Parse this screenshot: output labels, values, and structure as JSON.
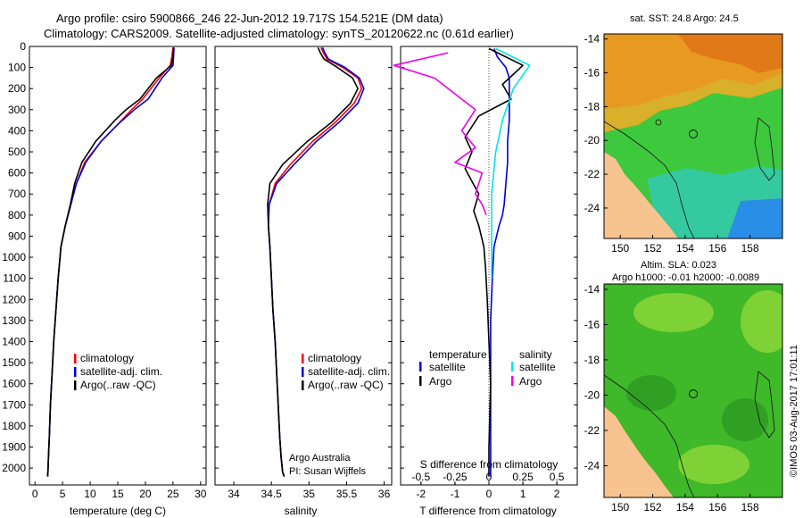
{
  "header": {
    "title_line1": "Argo profile: csiro 5900866_246 22-Jun-2012 19.717S 154.521E (DM data)",
    "title_line2": "Climatology: CARS2009. Satellite-adjusted climatology: synTS_20120622.nc (0.61d earlier)"
  },
  "colors": {
    "climatology": "#ff0000",
    "satellite": "#0000dd",
    "argo": "#000000",
    "salinity_satellite": "#00e5e5",
    "salinity_argo": "#ee00ee",
    "land": "#f7c38f",
    "map_bg": "#22bb22"
  },
  "chart_data": [
    {
      "type": "line",
      "name": "temperature-profile",
      "xlabel": "temperature (deg C)",
      "ylabel": "",
      "xlim": [
        -1,
        31
      ],
      "ylim": [
        2080,
        0
      ],
      "xticks": [
        0,
        5,
        10,
        15,
        20,
        25,
        30
      ],
      "xtick_labels": [
        "0",
        "5",
        "10",
        "15",
        "20",
        "25",
        "30"
      ],
      "yticks": [
        0,
        100,
        200,
        300,
        400,
        500,
        600,
        700,
        800,
        900,
        1000,
        1100,
        1200,
        1300,
        1400,
        1500,
        1600,
        1700,
        1800,
        1900,
        2000
      ],
      "ytick_labels": [
        "0",
        "100",
        "200",
        "300",
        "400",
        "500",
        "600",
        "700",
        "800",
        "900",
        "1000",
        "1100",
        "1200",
        "1300",
        "1400",
        "1500",
        "1600",
        "1700",
        "1800",
        "1900",
        "2000"
      ],
      "legend": [
        "climatology",
        "satellite-adj. clim.",
        "Argo(..raw -QC)"
      ],
      "series": [
        {
          "name": "climatology",
          "color": "#ff0000",
          "x": [
            25.0,
            24.8,
            24.5,
            22.5,
            19.5,
            17.5,
            15.0,
            12.0,
            9.0,
            7.5,
            6.5,
            5.5,
            4.7,
            4.2,
            3.8,
            3.4,
            3.1,
            2.8,
            2.6,
            2.45,
            2.35,
            2.3
          ],
          "y": [
            5,
            50,
            90,
            150,
            250,
            300,
            370,
            450,
            550,
            650,
            750,
            850,
            950,
            1100,
            1250,
            1400,
            1550,
            1700,
            1850,
            1950,
            2020,
            2040
          ]
        },
        {
          "name": "satellite-adj. clim.",
          "color": "#0000dd",
          "x": [
            25.2,
            25.1,
            25.0,
            23.0,
            20.5,
            18.0,
            15.0,
            12.0,
            9.2,
            7.5,
            6.5,
            5.5,
            4.7,
            4.2,
            3.8,
            3.4,
            3.1,
            2.8,
            2.6,
            2.45,
            2.35,
            2.3
          ],
          "y": [
            5,
            50,
            90,
            150,
            250,
            300,
            370,
            450,
            550,
            650,
            750,
            850,
            950,
            1100,
            1250,
            1400,
            1550,
            1700,
            1850,
            1950,
            2020,
            2040
          ]
        },
        {
          "name": "Argo(..raw -QC)",
          "color": "#000000",
          "x": [
            25.1,
            25.0,
            24.7,
            22.0,
            19.0,
            16.5,
            14.5,
            11.0,
            8.5,
            7.2,
            6.4,
            5.5,
            4.7,
            4.2,
            3.8,
            3.4,
            3.1,
            2.8,
            2.6,
            2.45,
            2.35,
            2.3
          ],
          "y": [
            5,
            50,
            90,
            150,
            250,
            300,
            350,
            450,
            550,
            650,
            750,
            850,
            950,
            1100,
            1250,
            1400,
            1550,
            1700,
            1850,
            1950,
            2020,
            2040
          ]
        }
      ]
    },
    {
      "type": "line",
      "name": "salinity-profile",
      "xlabel": "salinity",
      "xlim": [
        33.75,
        36.1
      ],
      "ylim": [
        2080,
        0
      ],
      "xticks": [
        34,
        34.5,
        35,
        35.5,
        36
      ],
      "xtick_labels": [
        "34",
        "34.5",
        "35",
        "35.5",
        "36"
      ],
      "legend": [
        "climatology",
        "satellite-adj. clim.",
        "Argo(..raw -QC)"
      ],
      "annotation": [
        "Argo Australia",
        "PI: Susan Wijffels"
      ],
      "series": [
        {
          "name": "climatology",
          "color": "#ff0000",
          "x": [
            35.16,
            35.19,
            35.24,
            35.45,
            35.65,
            35.7,
            35.6,
            35.35,
            35.05,
            34.75,
            34.55,
            34.47,
            34.46,
            34.48,
            34.5,
            34.52,
            34.55,
            34.57,
            34.59,
            34.61,
            34.63,
            34.65,
            34.67
          ],
          "y": [
            5,
            30,
            60,
            100,
            150,
            200,
            270,
            360,
            450,
            560,
            650,
            750,
            850,
            950,
            1100,
            1250,
            1400,
            1550,
            1700,
            1850,
            1950,
            2020,
            2040
          ]
        },
        {
          "name": "satellite-adj. clim.",
          "color": "#0000dd",
          "x": [
            35.18,
            35.21,
            35.26,
            35.48,
            35.67,
            35.73,
            35.65,
            35.4,
            35.1,
            34.8,
            34.57,
            34.47,
            34.46,
            34.48,
            34.5,
            34.52,
            34.55,
            34.57,
            34.59,
            34.61,
            34.63,
            34.65,
            34.67
          ],
          "y": [
            5,
            30,
            60,
            100,
            150,
            200,
            270,
            360,
            450,
            560,
            650,
            750,
            850,
            950,
            1100,
            1250,
            1400,
            1550,
            1700,
            1850,
            1950,
            2020,
            2040
          ]
        },
        {
          "name": "Argo(..raw -QC)",
          "color": "#000000",
          "x": [
            35.12,
            35.15,
            35.2,
            35.38,
            35.58,
            35.65,
            35.55,
            35.3,
            34.98,
            34.65,
            34.48,
            34.45,
            34.46,
            34.48,
            34.5,
            34.52,
            34.55,
            34.57,
            34.59,
            34.61,
            34.63,
            34.65,
            34.67
          ],
          "y": [
            5,
            30,
            60,
            100,
            150,
            200,
            270,
            360,
            450,
            560,
            650,
            750,
            850,
            950,
            1100,
            1250,
            1400,
            1550,
            1700,
            1850,
            1950,
            2020,
            2040
          ]
        }
      ]
    },
    {
      "type": "line",
      "name": "difference-profile",
      "xlabel": "T difference from climatology",
      "xlabel_top": "S difference from climatology",
      "xlim": [
        -2.6,
        2.6
      ],
      "ylim": [
        2080,
        0
      ],
      "xticks": [
        -2,
        -1,
        0,
        1,
        2
      ],
      "xtick_labels": [
        "-2",
        "-1",
        "0",
        "1",
        "2"
      ],
      "sticks": [
        -0.5,
        -0.25,
        0,
        0.25,
        0.5
      ],
      "stick_labels": [
        "-0.5",
        "-0.25",
        "0",
        "0.25",
        "0.5"
      ],
      "legend_temperature": {
        "title": "temperature",
        "satellite": "satellite",
        "argo": "Argo"
      },
      "legend_salinity": {
        "title": "salinity",
        "satellite": "satellite",
        "argo": "Argo"
      },
      "series": [
        {
          "name": "T satellite",
          "color": "#0000dd",
          "x": [
            0.15,
            0.25,
            0.5,
            0.6,
            0.6,
            0.6,
            0.55,
            0.55,
            0.5,
            0.45,
            0.4,
            0.3,
            0.15,
            0.1,
            0.05,
            0.05,
            0.05,
            0.05
          ],
          "y": [
            10,
            50,
            100,
            150,
            250,
            350,
            450,
            550,
            650,
            750,
            800,
            850,
            950,
            1100,
            1300,
            1600,
            1900,
            2040
          ]
        },
        {
          "name": "T Argo",
          "color": "#000000",
          "x": [
            0.0,
            1.0,
            0.4,
            0.65,
            -0.3,
            -0.7,
            -0.5,
            -0.7,
            -0.3,
            -0.45,
            -0.3,
            -0.15,
            -0.1,
            -0.05,
            0.05,
            0.0,
            0.0
          ],
          "y": [
            10,
            90,
            180,
            250,
            330,
            430,
            500,
            580,
            700,
            780,
            850,
            950,
            1050,
            1200,
            1600,
            1900,
            2040
          ]
        },
        {
          "name": "S satellite",
          "color": "#00e5e5",
          "x": [
            0.05,
            0.3,
            0.18,
            0.1,
            0.05,
            0.02,
            0.02,
            0.02
          ],
          "y": [
            10,
            90,
            200,
            350,
            500,
            700,
            900,
            1100
          ]
        },
        {
          "name": "S Argo",
          "color": "#ee00ee",
          "x": [
            -0.3,
            -0.7,
            -0.4,
            -0.2,
            -0.1,
            -0.2,
            -0.1,
            -0.25,
            -0.05,
            -0.1,
            -0.05,
            -0.02
          ],
          "y": [
            30,
            90,
            150,
            250,
            300,
            400,
            480,
            550,
            600,
            700,
            750,
            800
          ]
        }
      ]
    },
    {
      "type": "heatmap",
      "name": "sst-map",
      "title": "sat. SST: 24.8  Argo: 24.5",
      "xticks": [
        150,
        152,
        154,
        156,
        158
      ],
      "xtick_labels": [
        "150",
        "152",
        "154",
        "156",
        "158"
      ],
      "yticks": [
        -14,
        -16,
        -18,
        -20,
        -22,
        -24
      ],
      "ytick_labels": [
        "-14",
        "-16",
        "-18",
        "-20",
        "-22",
        "-24"
      ],
      "xlim": [
        149,
        160
      ],
      "ylim": [
        -25.8,
        -13.7
      ]
    },
    {
      "type": "heatmap",
      "name": "sla-map",
      "title_line1": "Altim. SLA: 0.023",
      "title_line2": "Argo h1000: -0.01 h2000: -0.0089",
      "xticks": [
        150,
        152,
        154,
        156,
        158
      ],
      "xtick_labels": [
        "150",
        "152",
        "154",
        "156",
        "158"
      ],
      "yticks": [
        -14,
        -16,
        -18,
        -20,
        -22,
        -24
      ],
      "ytick_labels": [
        "-14",
        "-16",
        "-18",
        "-20",
        "-22",
        "-24"
      ],
      "xlim": [
        149,
        160
      ],
      "ylim": [
        -25.8,
        -13.7
      ]
    }
  ],
  "footer": {
    "credit": "©IMOS 03-Aug-2017 17:01:11"
  }
}
